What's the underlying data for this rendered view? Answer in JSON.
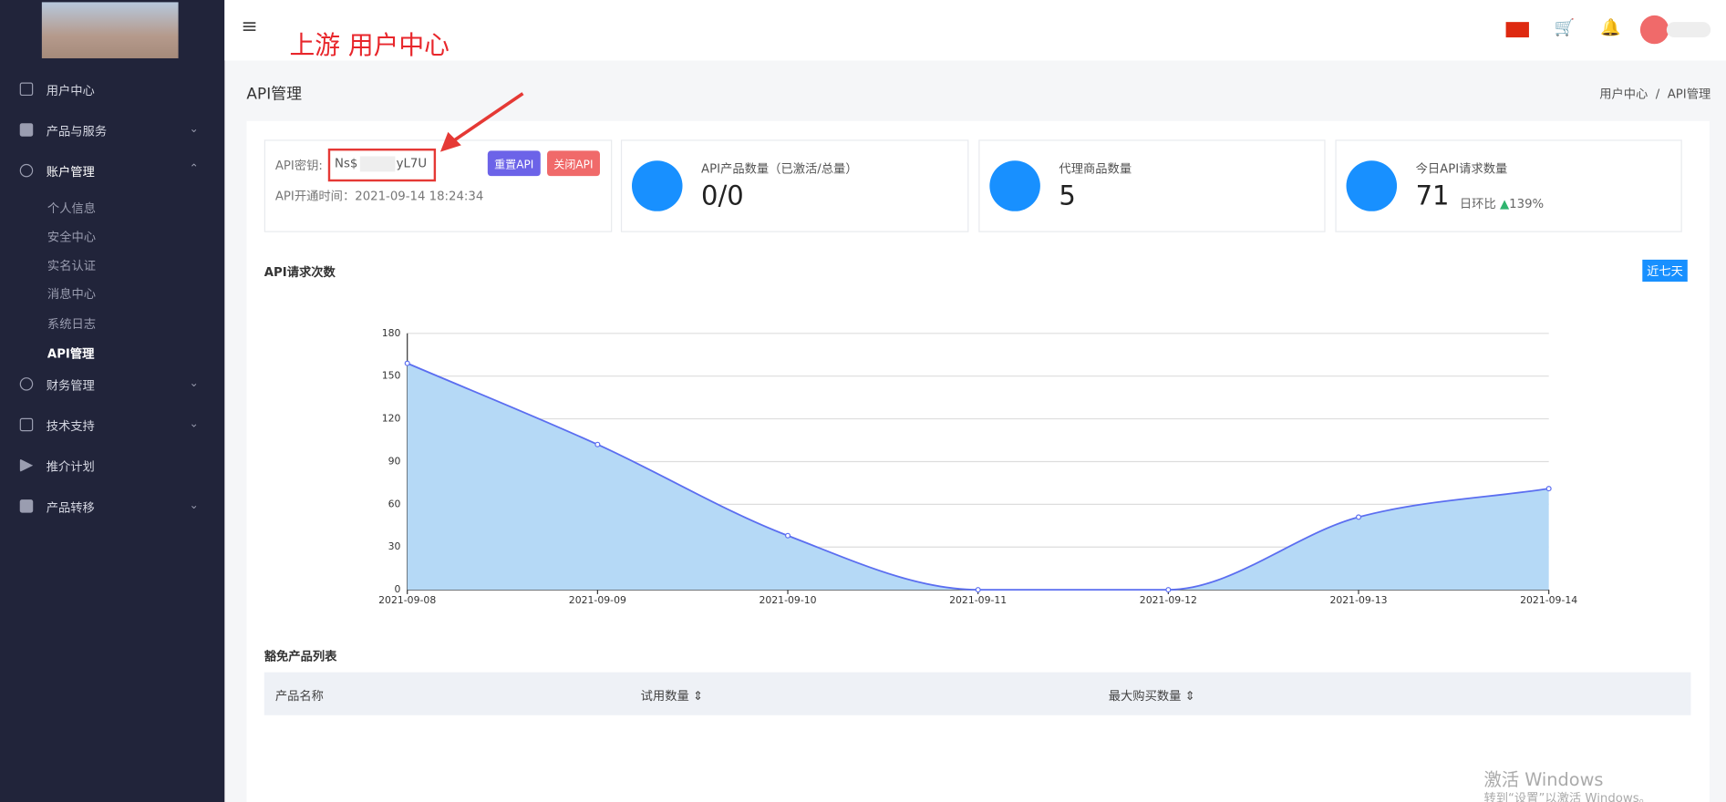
{
  "header": {
    "brand_note": "上游 用户中心"
  },
  "sidebar": {
    "menu": [
      {
        "label": "用户中心"
      },
      {
        "label": "产品与服务"
      },
      {
        "label": "账户管理",
        "children": [
          "个人信息",
          "安全中心",
          "实名认证",
          "消息中心",
          "系统日志",
          "API管理"
        ]
      },
      {
        "label": "财务管理"
      },
      {
        "label": "技术支持"
      },
      {
        "label": "推介计划"
      },
      {
        "label": "产品转移"
      }
    ]
  },
  "page": {
    "title": "API管理",
    "breadcrumb": [
      "用户中心",
      "API管理"
    ]
  },
  "api_card": {
    "key_label": "API密钥:",
    "key_start": "Ns$",
    "key_end": "yL7U",
    "buttons": [
      "重置API",
      "关闭API"
    ],
    "opened_label": "API开通时间：",
    "opened_time": "2021-09-14 18:24:34"
  },
  "stats": [
    {
      "label": "API产品数量（已激活/总量）",
      "value": "0/0"
    },
    {
      "label": "代理商品数量",
      "value": "5"
    },
    {
      "label": "今日API请求数量",
      "value": "71",
      "compare_label": "日环比",
      "compare_value": "139%"
    }
  ],
  "chart_section": {
    "title": "API请求次数",
    "range_button": "近七天"
  },
  "chart_data": {
    "type": "area",
    "x": [
      "2021-09-08",
      "2021-09-09",
      "2021-09-10",
      "2021-09-11",
      "2021-09-12",
      "2021-09-13",
      "2021-09-14"
    ],
    "values": [
      159,
      102,
      38,
      0,
      0,
      51,
      71
    ],
    "color": "#5b6ef0",
    "fill": "#b5d9f6",
    "ylim": [
      0,
      180
    ],
    "yticks": [
      0,
      30,
      60,
      90,
      120,
      150,
      180
    ],
    "grid": true
  },
  "table": {
    "title": "豁免产品列表",
    "columns": [
      "产品名称",
      "试用数量",
      "最大购买数量"
    ]
  },
  "watermark": {
    "line1": "激活 Windows",
    "line2": "转到“设置”以激活 Windows。"
  }
}
